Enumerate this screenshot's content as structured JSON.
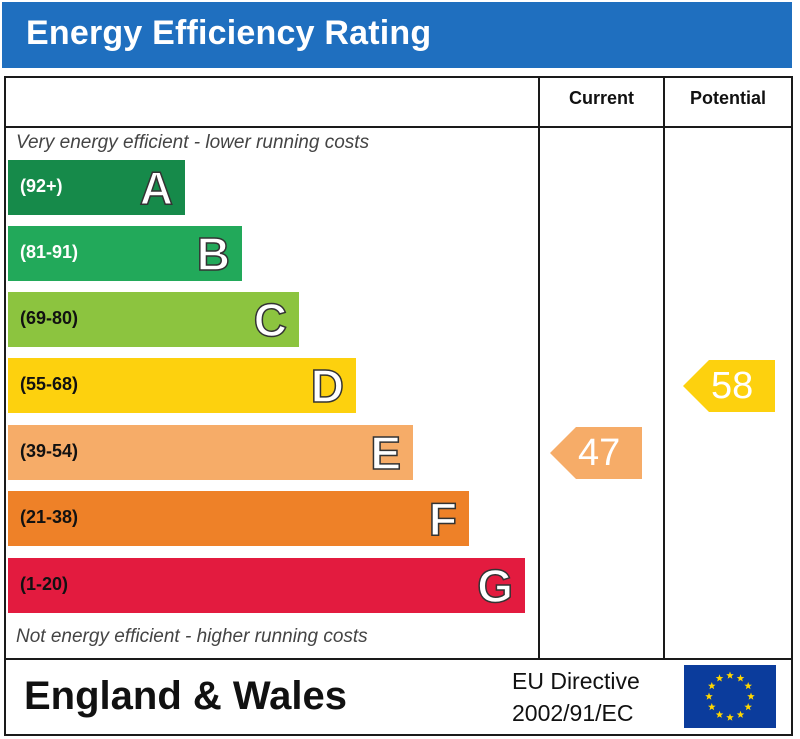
{
  "header": {
    "title": "Energy Efficiency Rating"
  },
  "columns": {
    "current": "Current",
    "potential": "Potential"
  },
  "notes": {
    "top": "Very energy efficient - lower running costs",
    "bottom": "Not energy efficient - higher running costs"
  },
  "chart_data": {
    "type": "bar",
    "bands": [
      {
        "letter": "A",
        "range": "(92+)",
        "color": "#168a4a"
      },
      {
        "letter": "B",
        "range": "(81-91)",
        "color": "#22a95a"
      },
      {
        "letter": "C",
        "range": "(69-80)",
        "color": "#8cc43f"
      },
      {
        "letter": "D",
        "range": "(55-68)",
        "color": "#fdd10e"
      },
      {
        "letter": "E",
        "range": "(39-54)",
        "color": "#f6ac68"
      },
      {
        "letter": "F",
        "range": "(21-38)",
        "color": "#ee8128"
      },
      {
        "letter": "G",
        "range": "(1-20)",
        "color": "#e31b3f"
      }
    ],
    "current": {
      "value": 47,
      "band": "E",
      "color": "#f6ac68"
    },
    "potential": {
      "value": 58,
      "band": "D",
      "color": "#fdd10e"
    }
  },
  "footer": {
    "region": "England & Wales",
    "directive_line1": "EU Directive",
    "directive_line2": "2002/91/EC",
    "flag_icon": "eu-flag-icon"
  }
}
